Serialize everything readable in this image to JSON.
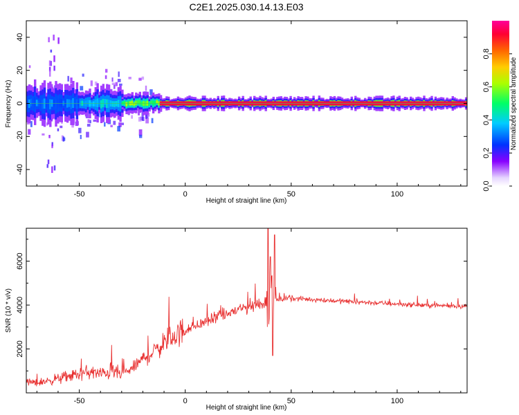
{
  "title": "C2E1.2025.030.14.13.E03",
  "colors": {
    "snr_line": "#e83030",
    "center_line": "#d01030",
    "frame": "#000000"
  },
  "chart_data": [
    {
      "type": "heatmap",
      "name": "spectrogram",
      "xlabel": "Height of straight line (km)",
      "ylabel": "Frequency (Hz)",
      "xlim": [
        -75,
        133
      ],
      "ylim": [
        -50,
        50
      ],
      "xticks": [
        -50,
        0,
        50,
        100
      ],
      "yticks": [
        -40,
        -20,
        0,
        20,
        40
      ],
      "center_frequency_hz": 0,
      "colorbar": {
        "label": "Normalized spectral amplitude",
        "range": [
          0.0,
          1.0
        ],
        "ticks": [
          0.0,
          0.2,
          0.4,
          0.6,
          0.8
        ],
        "tick_labels": [
          "0.0",
          "0.2",
          "0.4",
          "0.6",
          "0.8"
        ]
      },
      "bands": [
        {
          "x_start": -75,
          "x_end": -50,
          "half_width_hz": 6,
          "amplitude": 0.35
        },
        {
          "x_start": -50,
          "x_end": -30,
          "half_width_hz": 5,
          "amplitude": 0.45
        },
        {
          "x_start": -30,
          "x_end": -12,
          "half_width_hz": 3,
          "amplitude": 0.65
        },
        {
          "x_start": -12,
          "x_end": 133,
          "half_width_hz": 2,
          "amplitude": 0.95
        }
      ]
    },
    {
      "type": "line",
      "name": "snr",
      "xlabel": "Height of straight line (km)",
      "ylabel": "SNR (10 * v/v)",
      "xlim": [
        -75,
        133
      ],
      "ylim": [
        0,
        7500
      ],
      "xticks": [
        -50,
        0,
        50,
        100
      ],
      "yticks": [
        2000,
        4000,
        6000
      ],
      "series": [
        {
          "name": "SNR",
          "x": [
            -75,
            -70,
            -65,
            -60,
            -55,
            -50,
            -45,
            -40,
            -35,
            -30,
            -25,
            -20,
            -15,
            -10,
            -5,
            0,
            5,
            10,
            15,
            20,
            25,
            30,
            35,
            38,
            40,
            42,
            44,
            50,
            60,
            70,
            80,
            90,
            100,
            110,
            120,
            133
          ],
          "y": [
            500,
            450,
            550,
            650,
            750,
            850,
            950,
            850,
            1000,
            850,
            1100,
            1550,
            1850,
            2300,
            2600,
            2850,
            3050,
            3250,
            3450,
            3600,
            3800,
            3900,
            4050,
            4150,
            4000,
            4150,
            4250,
            4300,
            4250,
            4200,
            4150,
            4100,
            4050,
            4000,
            3980,
            3950
          ]
        }
      ],
      "peaks": [
        {
          "x": 39,
          "y": 7500
        },
        {
          "x": 40.2,
          "y": 6200
        },
        {
          "x": 41.2,
          "y": 1700
        },
        {
          "x": 42.2,
          "y": 7200
        }
      ]
    }
  ]
}
